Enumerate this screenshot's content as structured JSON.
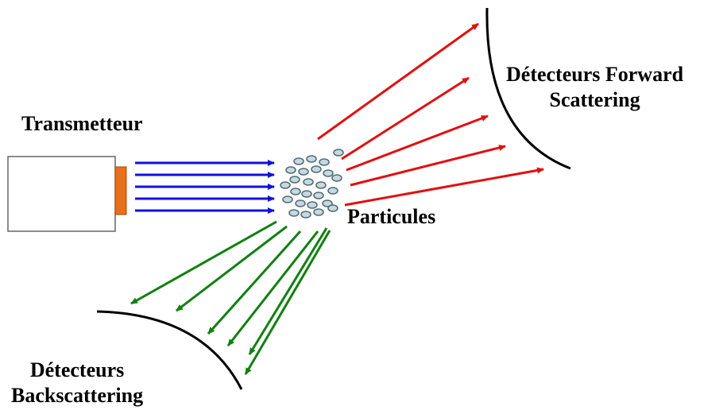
{
  "labels": {
    "transmitter": "Transmetteur",
    "particles": "Particules",
    "forward_line1": "Détecteurs Forward",
    "forward_line2": "Scattering",
    "back_line1": "Détecteurs",
    "back_line2": "Backscattering"
  },
  "colors": {
    "transmitted": "#1010e0",
    "forward": "#e01010",
    "back": "#108010",
    "aperture": "#e8701a",
    "particle_fill": "#c8d8dc",
    "particle_stroke": "#4a6a78",
    "detector": "#000000"
  }
}
